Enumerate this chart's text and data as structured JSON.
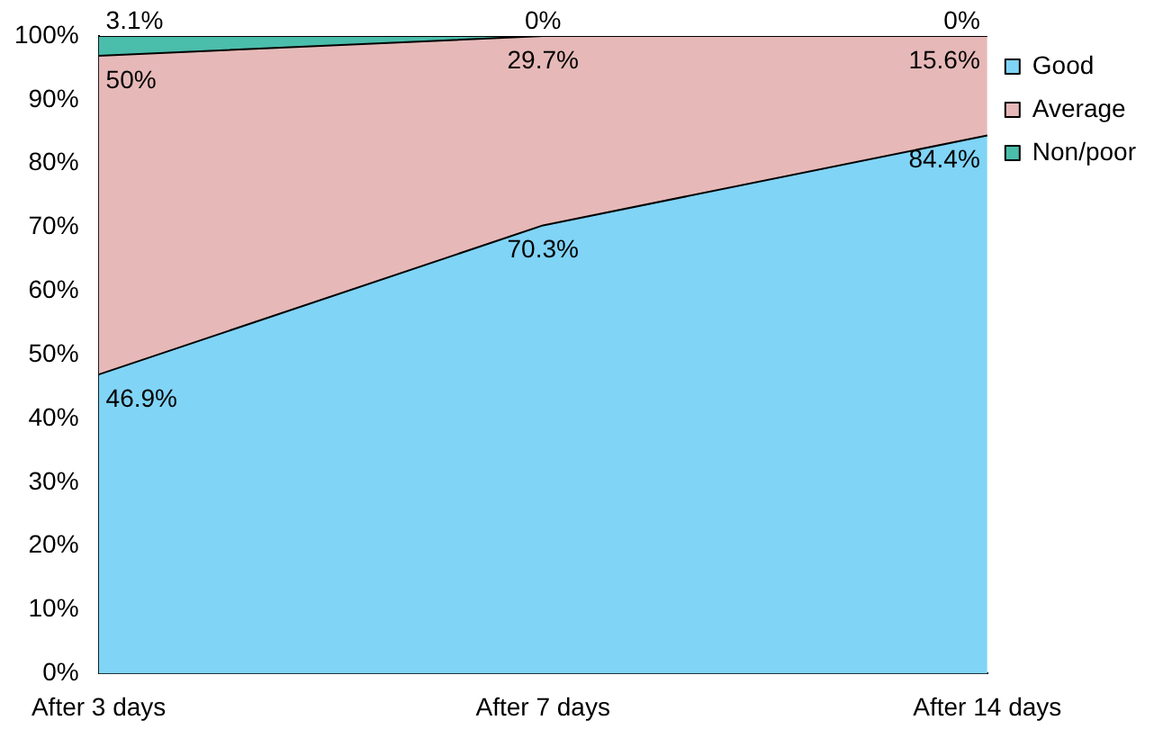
{
  "chart_data": {
    "type": "area",
    "stacked": true,
    "categories": [
      "After 3 days",
      "After 7 days",
      "After 14 days"
    ],
    "series": [
      {
        "name": "Good",
        "color": "#80d4f6",
        "values": [
          46.9,
          70.3,
          84.4
        ],
        "value_labels": [
          "46.9%",
          "70.3%",
          "84.4%"
        ]
      },
      {
        "name": "Average",
        "color": "#e6b9b8",
        "values": [
          50,
          29.7,
          15.6
        ],
        "value_labels": [
          "50%",
          "29.7%",
          "15.6%"
        ]
      },
      {
        "name": "Non/poor",
        "color": "#4bbdab",
        "values": [
          3.1,
          0,
          0
        ],
        "value_labels": [
          "3.1%",
          "0%",
          "0%"
        ]
      }
    ],
    "ylim": [
      0,
      100
    ],
    "yticks": [
      {
        "value": 0,
        "label": "0%"
      },
      {
        "value": 10,
        "label": "10%"
      },
      {
        "value": 20,
        "label": "20%"
      },
      {
        "value": 30,
        "label": "30%"
      },
      {
        "value": 40,
        "label": "40%"
      },
      {
        "value": 50,
        "label": "50%"
      },
      {
        "value": 60,
        "label": "60%"
      },
      {
        "value": 70,
        "label": "70%"
      },
      {
        "value": 80,
        "label": "80%"
      },
      {
        "value": 90,
        "label": "90%"
      },
      {
        "value": 100,
        "label": "100%"
      }
    ],
    "grid": false,
    "legend": "right"
  }
}
